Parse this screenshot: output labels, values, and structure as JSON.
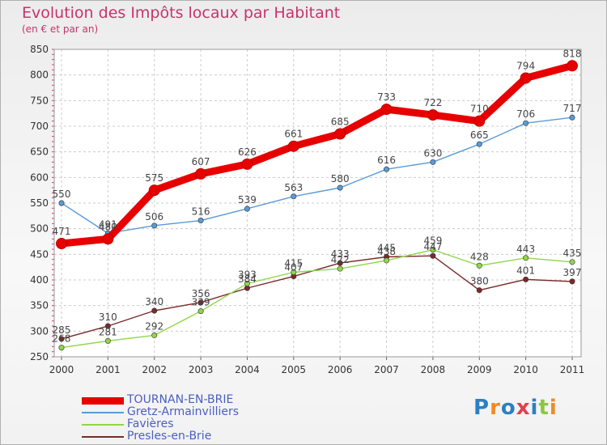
{
  "title": "Evolution des Impôts locaux par Habitant",
  "subtitle": "(en € et par an)",
  "logo": {
    "text": "Proxiti",
    "colors": [
      "#2d7fc1",
      "#f08a24",
      "#2d7fc1",
      "#e04050",
      "#2d7fc1",
      "#8cc63f",
      "#f08a24"
    ]
  },
  "chart_data": {
    "type": "line",
    "x": [
      "2000",
      "2001",
      "2002",
      "2003",
      "2004",
      "2005",
      "2006",
      "2007",
      "2008",
      "2009",
      "2010",
      "2011"
    ],
    "ylim": [
      250,
      850
    ],
    "yticks": [
      250,
      300,
      350,
      400,
      450,
      500,
      550,
      600,
      650,
      700,
      750,
      800,
      850
    ],
    "grid": true,
    "legend_position": "bottom-left",
    "series": [
      {
        "name": "TOURNAN-EN-BRIE",
        "color": "#e80000",
        "values": [
          471,
          480,
          575,
          607,
          626,
          661,
          685,
          733,
          722,
          710,
          794,
          818
        ]
      },
      {
        "name": "Gretz-Armainvilliers",
        "color": "#5a9bd4",
        "values": [
          550,
          491,
          506,
          516,
          539,
          563,
          580,
          616,
          630,
          665,
          706,
          717
        ]
      },
      {
        "name": "Favières",
        "color": "#8fd64a",
        "values": [
          268,
          281,
          292,
          339,
          393,
          415,
          422,
          438,
          459,
          428,
          443,
          435
        ]
      },
      {
        "name": "Presles-en-Brie",
        "color": "#7a2a2a",
        "values": [
          285,
          310,
          340,
          356,
          384,
          407,
          433,
          445,
          447,
          380,
          401,
          397
        ]
      }
    ]
  }
}
